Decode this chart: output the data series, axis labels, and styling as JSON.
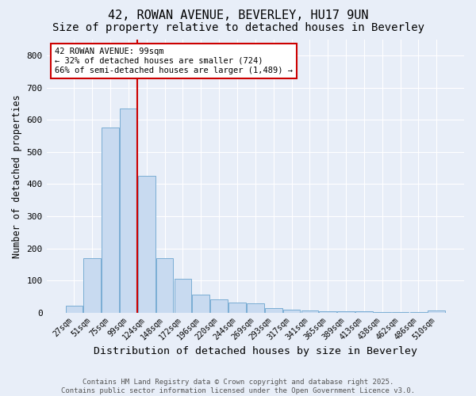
{
  "title": "42, ROWAN AVENUE, BEVERLEY, HU17 9UN",
  "subtitle": "Size of property relative to detached houses in Beverley",
  "xlabel": "Distribution of detached houses by size in Beverley",
  "ylabel": "Number of detached properties",
  "categories": [
    "27sqm",
    "51sqm",
    "75sqm",
    "99sqm",
    "124sqm",
    "148sqm",
    "172sqm",
    "196sqm",
    "220sqm",
    "244sqm",
    "269sqm",
    "293sqm",
    "317sqm",
    "341sqm",
    "365sqm",
    "389sqm",
    "413sqm",
    "438sqm",
    "462sqm",
    "486sqm",
    "510sqm"
  ],
  "values": [
    20,
    170,
    575,
    635,
    425,
    170,
    105,
    55,
    40,
    32,
    28,
    13,
    10,
    7,
    5,
    4,
    3,
    2,
    1,
    1,
    6
  ],
  "bar_color": "#c8daf0",
  "bar_edgecolor": "#7aadd4",
  "bar_linewidth": 0.7,
  "vline_x": 3.5,
  "vline_color": "#cc0000",
  "vline_linewidth": 1.5,
  "annotation_text": "42 ROWAN AVENUE: 99sqm\n← 32% of detached houses are smaller (724)\n66% of semi-detached houses are larger (1,489) →",
  "annotation_box_edgecolor": "#cc0000",
  "annotation_box_facecolor": "#ffffff",
  "annotation_fontsize": 7.5,
  "ylim": [
    0,
    850
  ],
  "yticks": [
    0,
    100,
    200,
    300,
    400,
    500,
    600,
    700,
    800
  ],
  "footnote": "Contains HM Land Registry data © Crown copyright and database right 2025.\nContains public sector information licensed under the Open Government Licence v3.0.",
  "background_color": "#e8eef8",
  "plot_background_color": "#e8eef8",
  "grid_color": "#ffffff",
  "title_fontsize": 11,
  "subtitle_fontsize": 10,
  "xlabel_fontsize": 9.5,
  "ylabel_fontsize": 8.5,
  "tick_fontsize": 7,
  "footnote_fontsize": 6.5,
  "ytick_fontsize": 8
}
